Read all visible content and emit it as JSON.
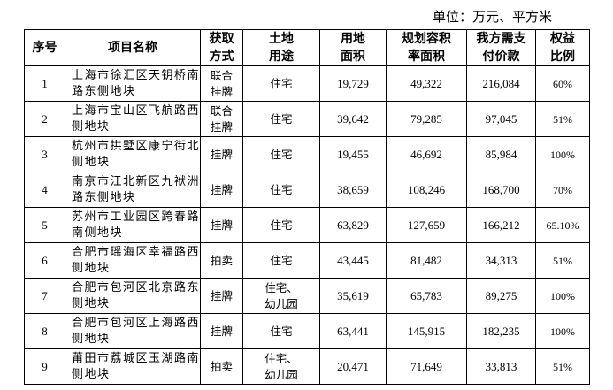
{
  "unit": "单位：万元、平方米",
  "headers": [
    "序号",
    "项目名称",
    "获取方式",
    "土地用途",
    "用地面积",
    "规划容积率面积",
    "我方需支付价款",
    "权益比例"
  ],
  "headers_lines": [
    [
      "序号"
    ],
    [
      "项目名称"
    ],
    [
      "获取",
      "方式"
    ],
    [
      "土地",
      "用途"
    ],
    [
      "用地",
      "面积"
    ],
    [
      "规划容积",
      "率面积"
    ],
    [
      "我方需支",
      "付价款"
    ],
    [
      "权益",
      "比例"
    ]
  ],
  "rows": [
    {
      "no": "1",
      "name": "上海市徐汇区天钥桥南路东侧地块",
      "way": "联合挂牌",
      "use": "住宅",
      "area": "19,729",
      "far": "49,322",
      "pay": "216,084",
      "ratio": "60%"
    },
    {
      "no": "2",
      "name": "上海市宝山区飞航路西侧地块",
      "way": "联合挂牌",
      "use": "住宅",
      "area": "39,642",
      "far": "79,285",
      "pay": "97,045",
      "ratio": "51%"
    },
    {
      "no": "3",
      "name": "杭州市拱墅区康宁街北侧地块",
      "way": "挂牌",
      "use": "住宅",
      "area": "19,455",
      "far": "46,692",
      "pay": "85,984",
      "ratio": "100%"
    },
    {
      "no": "4",
      "name": "南京市江北新区九袱洲路东侧地块",
      "way": "挂牌",
      "use": "住宅",
      "area": "38,659",
      "far": "108,246",
      "pay": "168,700",
      "ratio": "70%"
    },
    {
      "no": "5",
      "name": "苏州市工业园区跨春路南侧地块",
      "way": "挂牌",
      "use": "住宅",
      "area": "63,829",
      "far": "127,659",
      "pay": "166,212",
      "ratio": "65.10%"
    },
    {
      "no": "6",
      "name": "合肥市瑶海区幸福路西侧地块",
      "way": "拍卖",
      "use": "住宅",
      "area": "43,445",
      "far": "81,482",
      "pay": "34,313",
      "ratio": "51%"
    },
    {
      "no": "7",
      "name": "合肥市包河区北京路东侧地块",
      "way": "挂牌",
      "use": "住宅、幼儿园",
      "area": "35,619",
      "far": "65,783",
      "pay": "89,275",
      "ratio": "100%"
    },
    {
      "no": "8",
      "name": "合肥市包河区上海路西侧地块",
      "way": "挂牌",
      "use": "住宅",
      "area": "63,441",
      "far": "145,915",
      "pay": "182,235",
      "ratio": "100%"
    },
    {
      "no": "9",
      "name": "莆田市荔城区玉湖路南侧地块",
      "way": "拍卖",
      "use": "住宅、幼儿园",
      "area": "20,471",
      "far": "71,649",
      "pay": "33,813",
      "ratio": "51%"
    }
  ]
}
